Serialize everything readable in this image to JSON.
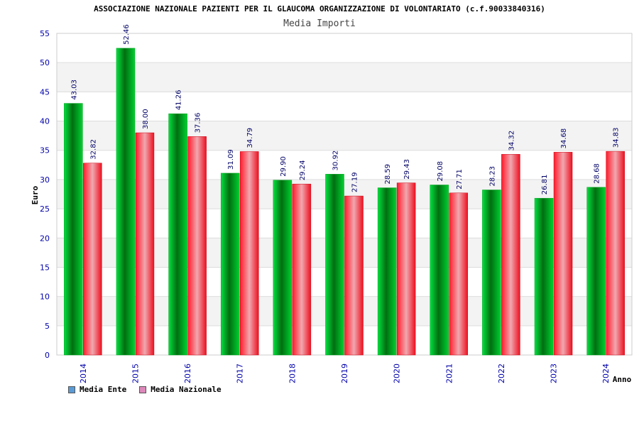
{
  "chart_data": {
    "type": "bar",
    "title": "ASSOCIAZIONE NAZIONALE PAZIENTI PER IL GLAUCOMA ORGANIZZAZIONE DI VOLONTARIATO (c.f.90033840316)",
    "subtitle": "Media Importi",
    "xlabel": "Anno",
    "ylabel": "Euro",
    "ylim": [
      0,
      55
    ],
    "ytick_step": 5,
    "grid": true,
    "legend_position": "bottom-left",
    "categories": [
      "2014",
      "2015",
      "2016",
      "2017",
      "2018",
      "2019",
      "2020",
      "2021",
      "2022",
      "2023",
      "2024"
    ],
    "series": [
      {
        "name": "Media Ente",
        "values": [
          43.03,
          52.46,
          41.26,
          31.09,
          29.9,
          30.92,
          28.59,
          29.08,
          28.23,
          26.81,
          28.68
        ],
        "labels": [
          "43.03",
          "52.46",
          "41.26",
          "31.09",
          "29.90",
          "30.92",
          "28.59",
          "29.08",
          "28.23",
          "26.81",
          "28.68"
        ],
        "bar_color": "#00c020",
        "legend_color": "#5b9bd5"
      },
      {
        "name": "Media Nazionale",
        "values": [
          32.82,
          38.0,
          37.36,
          34.79,
          29.24,
          27.19,
          29.43,
          27.71,
          34.32,
          34.68,
          34.83
        ],
        "labels": [
          "32.82",
          "38.00",
          "37.36",
          "34.79",
          "29.24",
          "27.19",
          "29.43",
          "27.71",
          "34.32",
          "34.68",
          "34.83"
        ],
        "bar_color": "#ee1122",
        "legend_color": "#dd88bb"
      }
    ]
  }
}
